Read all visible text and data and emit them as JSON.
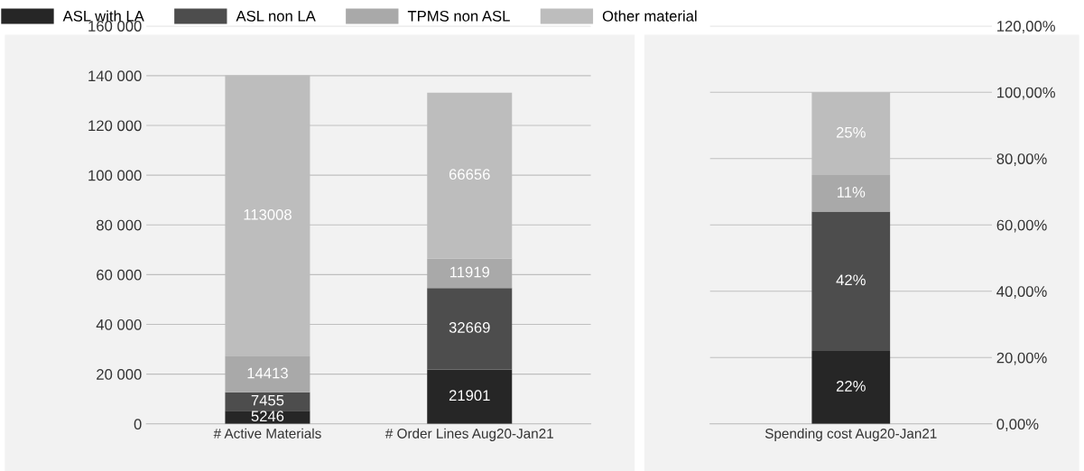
{
  "chart_data": [
    {
      "type": "bar",
      "stacked": true,
      "categories": [
        "# Active Materials",
        "# Order Lines Aug20-Jan21"
      ],
      "legend": "top left",
      "grid": "y",
      "data_labels": true,
      "ylim": [
        0,
        160000
      ],
      "yticks": [
        {
          "value": 0,
          "label": "0"
        },
        {
          "value": 20000,
          "label": "20 000"
        },
        {
          "value": 40000,
          "label": "40 000"
        },
        {
          "value": 60000,
          "label": "60 000"
        },
        {
          "value": 80000,
          "label": "80 000"
        },
        {
          "value": 100000,
          "label": "100 000"
        },
        {
          "value": 120000,
          "label": "120 000"
        },
        {
          "value": 140000,
          "label": "140 000"
        },
        {
          "value": 160000,
          "label": "160 000"
        }
      ],
      "series": [
        {
          "name": "ASL with LA",
          "color": "#262626",
          "values": [
            5246,
            21901
          ]
        },
        {
          "name": "ASL non LA",
          "color": "#4d4d4d",
          "values": [
            7455,
            32669
          ]
        },
        {
          "name": "TPMS non ASL",
          "color": "#a9a9a9",
          "values": [
            14413,
            11919
          ]
        },
        {
          "name": "Other material",
          "color": "#bdbdbd",
          "values": [
            113008,
            66656
          ]
        }
      ]
    },
    {
      "type": "bar",
      "stacked": true,
      "categories": [
        "Spending cost Aug20-Jan21"
      ],
      "grid": "y",
      "ylim": [
        0,
        120
      ],
      "yticks": [
        {
          "value": 0,
          "label": "0,00%"
        },
        {
          "value": 20,
          "label": "20,00%"
        },
        {
          "value": 40,
          "label": "40,00%"
        },
        {
          "value": 60,
          "label": "60,00%"
        },
        {
          "value": 80,
          "label": "80,00%"
        },
        {
          "value": 100,
          "label": "100,00%"
        },
        {
          "value": 120,
          "label": "120,00%"
        }
      ],
      "series": [
        {
          "color": "#262626",
          "values": [
            22
          ],
          "value_labels": [
            "22%"
          ]
        },
        {
          "color": "#4d4d4d",
          "values": [
            42
          ],
          "value_labels": [
            "42%"
          ]
        },
        {
          "color": "#a9a9a9",
          "values": [
            11
          ],
          "value_labels": [
            "11%"
          ]
        },
        {
          "color": "#bdbdbd",
          "values": [
            25
          ],
          "value_labels": [
            "25%"
          ]
        }
      ]
    }
  ]
}
